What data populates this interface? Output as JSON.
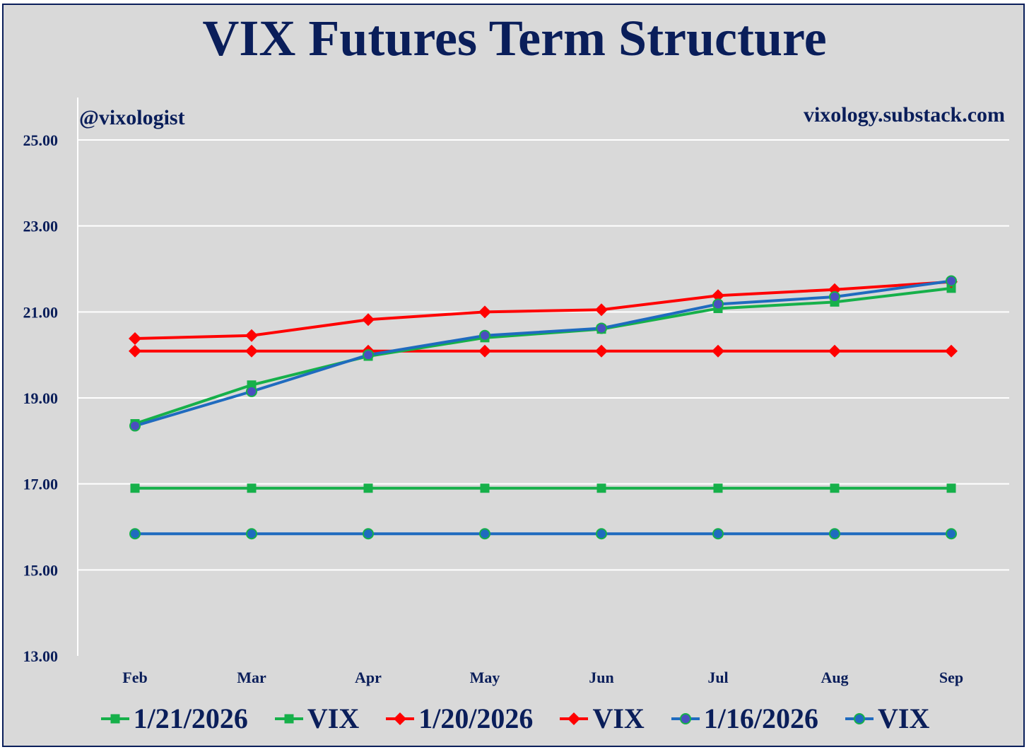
{
  "chart_data": {
    "type": "line",
    "title": "VIX Futures Term Structure",
    "annotations": {
      "handle": "@vixologist",
      "site": "vixology.substack.com"
    },
    "categories": [
      "Feb",
      "Mar",
      "Apr",
      "May",
      "Jun",
      "Jul",
      "Aug",
      "Sep"
    ],
    "yticks": [
      "25.00",
      "23.00",
      "21.00",
      "19.00",
      "17.00",
      "15.00",
      "13.00"
    ],
    "ylim": [
      13,
      25
    ],
    "grid": true,
    "legend_position": "bottom",
    "series": [
      {
        "name": "1/21/2026",
        "color": "#16b04a",
        "marker": "square",
        "values": [
          18.4,
          19.3,
          19.97,
          20.4,
          20.6,
          21.08,
          21.23,
          21.55
        ]
      },
      {
        "name": "VIX",
        "color": "#16b04a",
        "marker": "square",
        "values": [
          16.9,
          16.9,
          16.9,
          16.9,
          16.9,
          16.9,
          16.9,
          16.9
        ]
      },
      {
        "name": "1/20/2026",
        "color": "#ff0000",
        "marker": "diamond",
        "values": [
          20.38,
          20.45,
          20.82,
          21.0,
          21.05,
          21.38,
          21.52,
          21.7
        ]
      },
      {
        "name": "VIX",
        "color": "#ff0000",
        "marker": "diamond",
        "values": [
          20.09,
          20.09,
          20.09,
          20.09,
          20.09,
          20.09,
          20.09,
          20.09
        ]
      },
      {
        "name": "1/16/2026",
        "color": "#1f6bbf",
        "marker": "circle",
        "markerColor": "#4a4fbf",
        "values": [
          18.35,
          19.15,
          20.0,
          20.45,
          20.62,
          21.18,
          21.35,
          21.72
        ]
      },
      {
        "name": "VIX",
        "color": "#1f6bbf",
        "marker": "circle",
        "markerColor": "#1f6bbf",
        "values": [
          15.84,
          15.84,
          15.84,
          15.84,
          15.84,
          15.84,
          15.84,
          15.84
        ]
      }
    ]
  }
}
